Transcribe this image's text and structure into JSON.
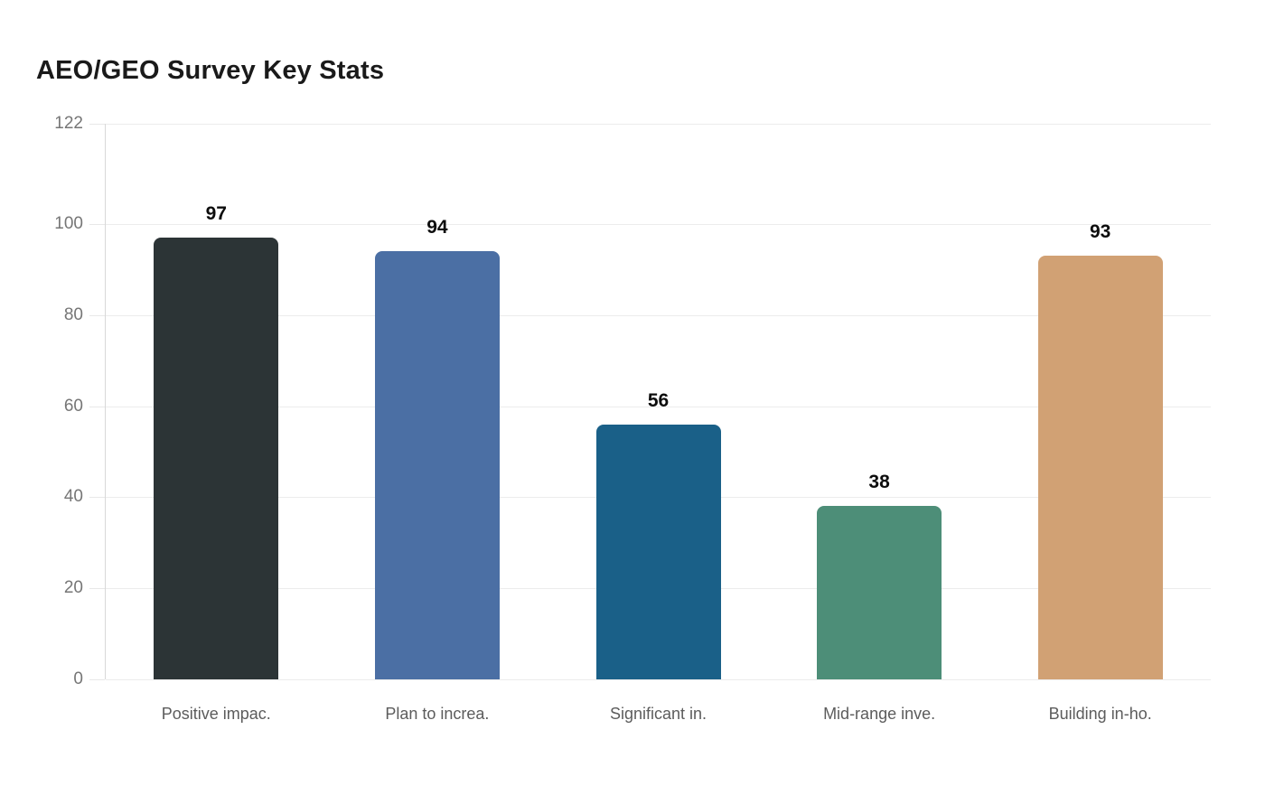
{
  "chart_data": {
    "type": "bar",
    "title": "AEO/GEO Survey Key Stats",
    "categories": [
      "Positive impac.",
      "Plan to increa.",
      "Significant in.",
      "Mid-range inve.",
      "Building in-ho."
    ],
    "values": [
      97,
      94,
      56,
      38,
      93
    ],
    "value_labels": [
      "97",
      "94",
      "56",
      "38",
      "93"
    ],
    "bar_colors": [
      "#2c3436",
      "#4b6fa4",
      "#1a6088",
      "#4d8e78",
      "#d1a174"
    ],
    "xlabel": "",
    "ylabel": "",
    "ylim": [
      0,
      122
    ],
    "yticks": [
      0,
      20,
      40,
      60,
      80,
      100,
      122
    ],
    "grid": true,
    "legend": "none",
    "colors": {
      "title_text": "#1a1a1a",
      "grid_line": "#ececec",
      "axis_line": "#d8d8d8",
      "y_tick_text": "#767676",
      "x_tick_text": "#5c5c5c",
      "value_label_text": "#0d0d0d",
      "background": "#ffffff"
    }
  }
}
